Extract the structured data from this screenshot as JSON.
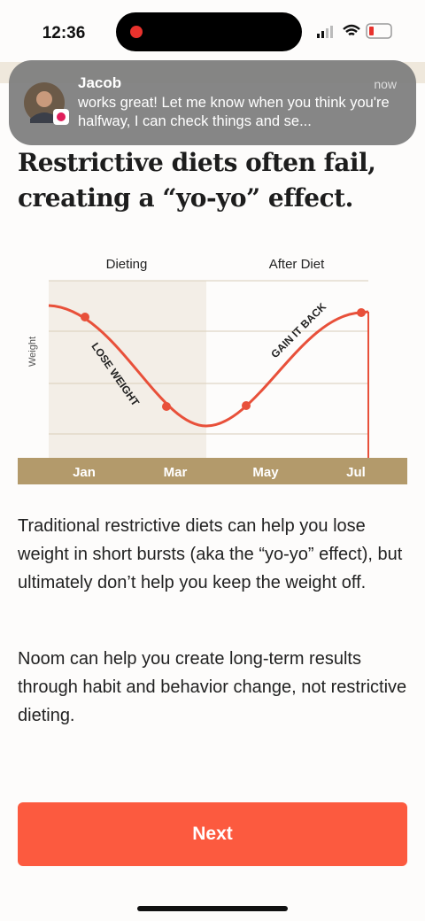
{
  "status_bar": {
    "time": "12:36"
  },
  "notification": {
    "sender": "Jacob",
    "time": "now",
    "message": "works great! Let me know when you think you're halfway, I can check things and se..."
  },
  "heading": "Restrictive diets often fail, creating a “yo-yo” effect.",
  "chart": {
    "phases": [
      "Dieting",
      "After Diet"
    ],
    "y_label": "Weight",
    "annotations": [
      "LOSE WEIGHT",
      "GAIN IT BACK"
    ],
    "months": [
      "Jan",
      "Mar",
      "May",
      "Jul"
    ]
  },
  "paragraphs": [
    "Traditional restrictive diets can help you lose weight in short bursts (aka the “yo-yo” effect), but ultimately don’t help you keep the weight off.",
    "Noom can help you create long-term results through habit and behavior change, not restrictive dieting."
  ],
  "button": {
    "label": "Next"
  }
}
